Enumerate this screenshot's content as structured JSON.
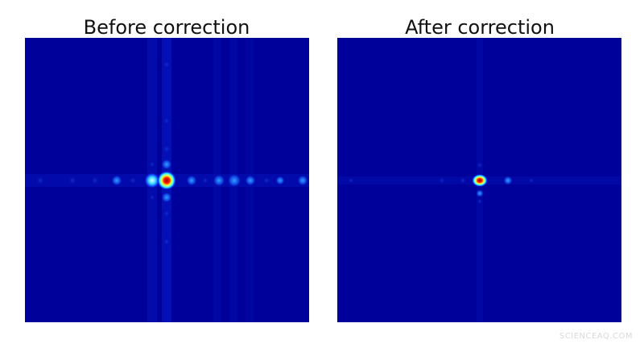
{
  "panels": [
    {
      "title": "Before correction"
    },
    {
      "title": "After correction"
    }
  ],
  "watermark": "SCIENCEAQ.COM"
}
